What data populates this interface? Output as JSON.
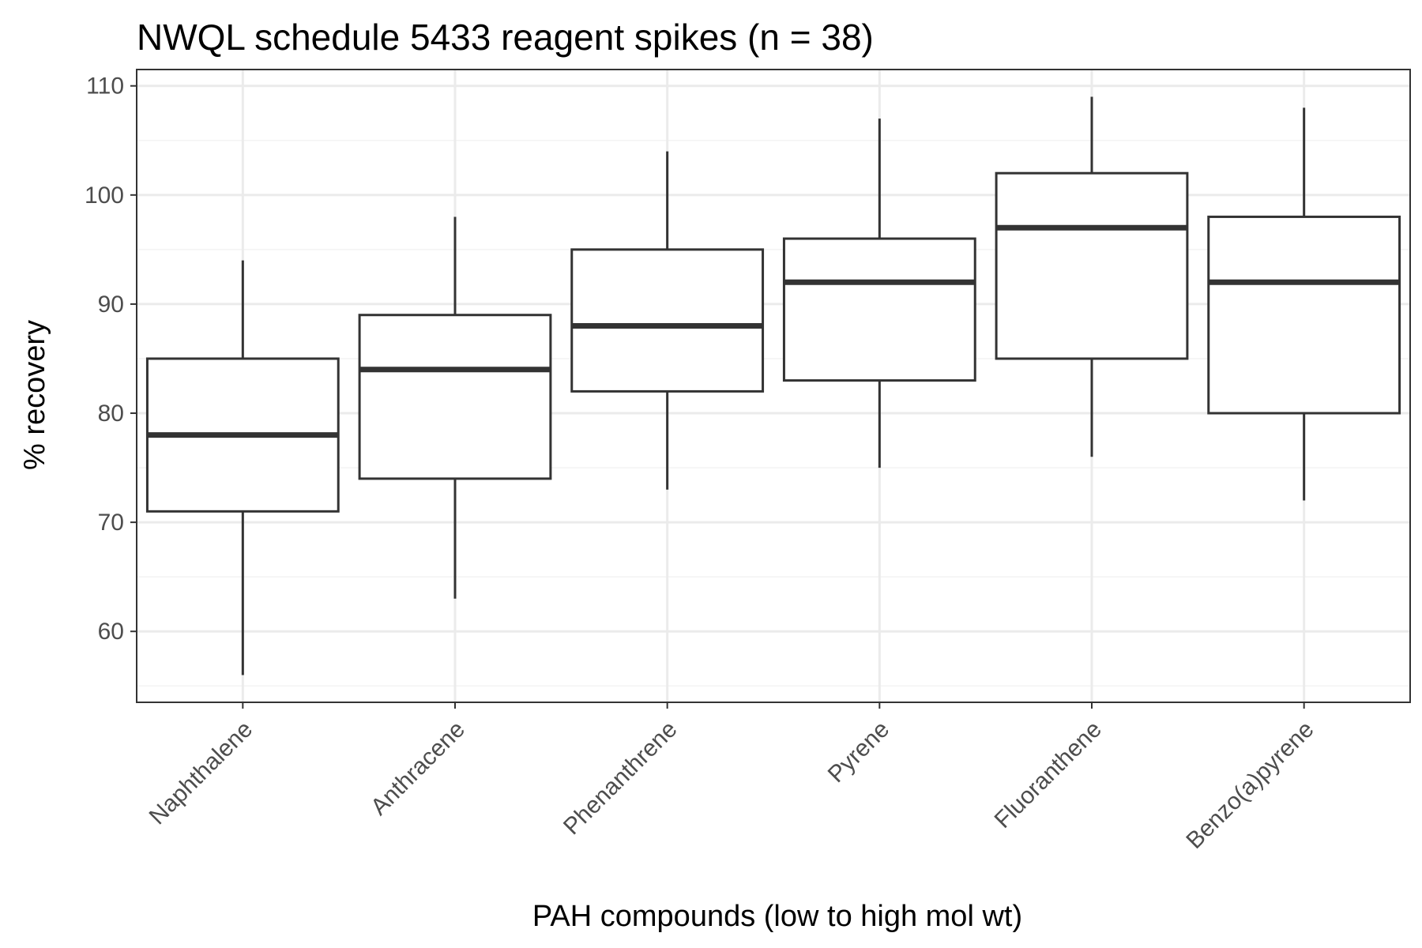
{
  "chart_data": {
    "type": "boxplot",
    "title": "NWQL schedule 5433 reagent spikes (n = 38)",
    "xlabel": "PAH compounds (low to high mol wt)",
    "ylabel": "% recovery",
    "ylim": [
      53.5,
      111.5
    ],
    "yticks": [
      60,
      70,
      80,
      90,
      100,
      110
    ],
    "grid": true,
    "categories": [
      "Naphthalene",
      "Anthracene",
      "Phenanthrene",
      "Pyrene",
      "Fluoranthene",
      "Benzo(a)pyrene"
    ],
    "boxes": [
      {
        "category": "Naphthalene",
        "whisker_low": 56,
        "q1": 71,
        "median": 78,
        "q3": 85,
        "whisker_high": 94
      },
      {
        "category": "Anthracene",
        "whisker_low": 63,
        "q1": 74,
        "median": 84,
        "q3": 89,
        "whisker_high": 98
      },
      {
        "category": "Phenanthrene",
        "whisker_low": 73,
        "q1": 82,
        "median": 88,
        "q3": 95,
        "whisker_high": 104
      },
      {
        "category": "Pyrene",
        "whisker_low": 75,
        "q1": 83,
        "median": 92,
        "q3": 96,
        "whisker_high": 107
      },
      {
        "category": "Fluoranthene",
        "whisker_low": 76,
        "q1": 85,
        "median": 97,
        "q3": 102,
        "whisker_high": 109
      },
      {
        "category": "Benzo(a)pyrene",
        "whisker_low": 72,
        "q1": 80,
        "median": 92,
        "q3": 98,
        "whisker_high": 108
      }
    ]
  }
}
